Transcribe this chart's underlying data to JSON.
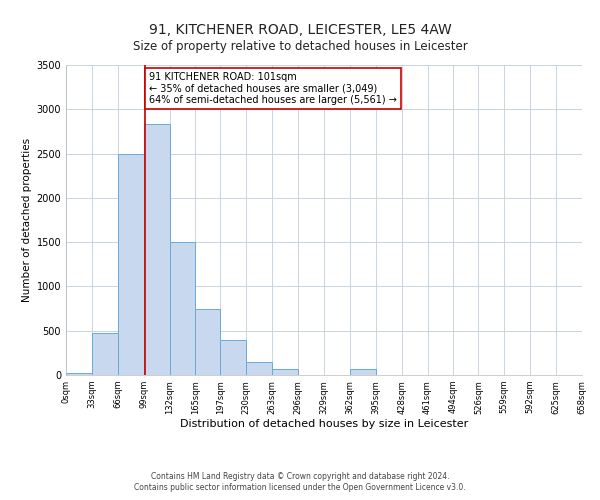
{
  "title": "91, KITCHENER ROAD, LEICESTER, LE5 4AW",
  "subtitle": "Size of property relative to detached houses in Leicester",
  "xlabel": "Distribution of detached houses by size in Leicester",
  "ylabel": "Number of detached properties",
  "bar_edges": [
    0,
    33,
    66,
    99,
    132,
    165,
    197,
    230,
    263,
    296,
    329,
    362,
    395,
    428,
    461,
    494,
    526,
    559,
    592,
    625,
    658
  ],
  "bar_heights": [
    25,
    475,
    2500,
    2830,
    1500,
    750,
    390,
    150,
    70,
    0,
    0,
    65,
    0,
    0,
    0,
    0,
    0,
    0,
    0,
    0
  ],
  "bar_color": "#c8d8ee",
  "bar_edge_color": "#6aaad4",
  "property_value": 101,
  "vline_color": "#cc0000",
  "annotation_text": "91 KITCHENER ROAD: 101sqm\n← 35% of detached houses are smaller (3,049)\n64% of semi-detached houses are larger (5,561) →",
  "annotation_box_color": "#ffffff",
  "annotation_box_edge": "#cc0000",
  "ylim": [
    0,
    3500
  ],
  "yticks": [
    0,
    500,
    1000,
    1500,
    2000,
    2500,
    3000,
    3500
  ],
  "tick_labels": [
    "0sqm",
    "33sqm",
    "66sqm",
    "99sqm",
    "132sqm",
    "165sqm",
    "197sqm",
    "230sqm",
    "263sqm",
    "296sqm",
    "329sqm",
    "362sqm",
    "395sqm",
    "428sqm",
    "461sqm",
    "494sqm",
    "526sqm",
    "559sqm",
    "592sqm",
    "625sqm",
    "658sqm"
  ],
  "footer_line1": "Contains HM Land Registry data © Crown copyright and database right 2024.",
  "footer_line2": "Contains public sector information licensed under the Open Government Licence v3.0.",
  "background_color": "#ffffff",
  "grid_color": "#c8d4e0",
  "title_fontsize": 10,
  "subtitle_fontsize": 8.5,
  "xlabel_fontsize": 8,
  "ylabel_fontsize": 7.5,
  "tick_fontsize": 6,
  "ytick_fontsize": 7,
  "annotation_fontsize": 7,
  "footer_fontsize": 5.5
}
